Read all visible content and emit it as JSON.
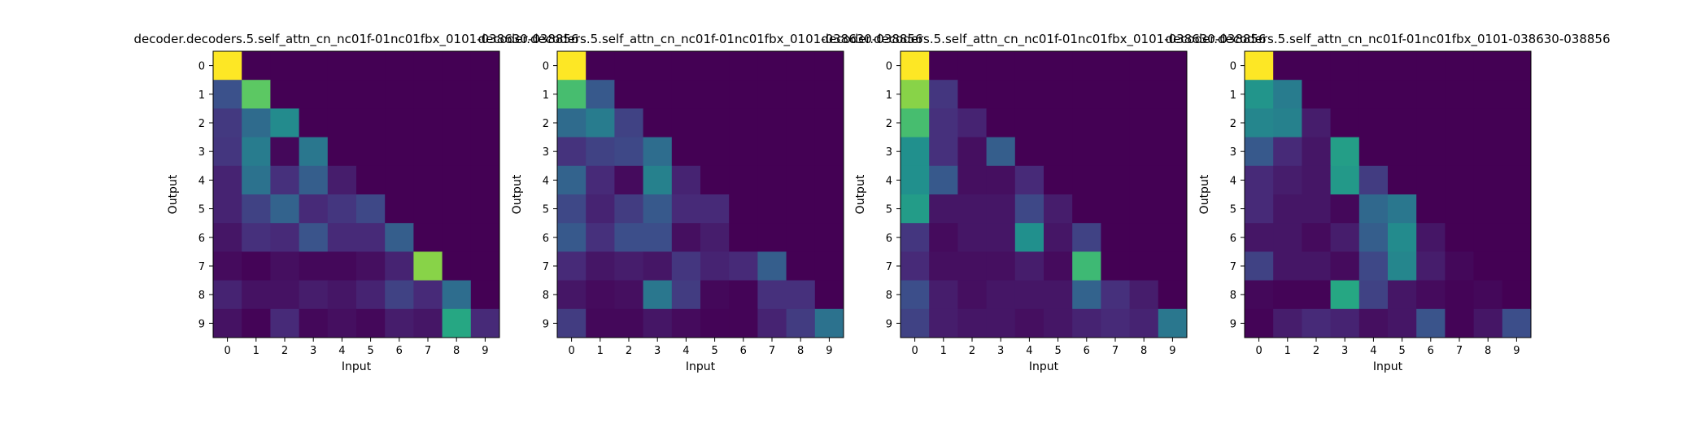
{
  "figure": {
    "xlabel": "Input",
    "ylabel": "Output",
    "x_ticks": [
      "0",
      "1",
      "2",
      "3",
      "4",
      "5",
      "6",
      "7",
      "8",
      "9"
    ],
    "y_ticks": [
      "0",
      "1",
      "2",
      "3",
      "4",
      "5",
      "6",
      "7",
      "8",
      "9"
    ],
    "colormap": "viridis"
  },
  "chart_data": [
    {
      "type": "heatmap",
      "title": "decoder.decoders.5.self_attn_cn_nc01f-01nc01fbx_0101-038630-038856",
      "xlabel": "Input",
      "ylabel": "Output",
      "x_categories": [
        "0",
        "1",
        "2",
        "3",
        "4",
        "5",
        "6",
        "7",
        "8",
        "9"
      ],
      "y_categories": [
        "0",
        "1",
        "2",
        "3",
        "4",
        "5",
        "6",
        "7",
        "8",
        "9"
      ],
      "values": [
        [
          1.0,
          0,
          0,
          0,
          0,
          0,
          0,
          0,
          0,
          0
        ],
        [
          0.25,
          0.75,
          0,
          0,
          0,
          0,
          0,
          0,
          0,
          0
        ],
        [
          0.17,
          0.35,
          0.48,
          0,
          0,
          0,
          0,
          0,
          0,
          0
        ],
        [
          0.16,
          0.42,
          0.02,
          0.4,
          0,
          0,
          0,
          0,
          0,
          0
        ],
        [
          0.1,
          0.38,
          0.14,
          0.3,
          0.08,
          0,
          0,
          0,
          0,
          0
        ],
        [
          0.1,
          0.2,
          0.32,
          0.12,
          0.16,
          0.22,
          0,
          0,
          0,
          0
        ],
        [
          0.06,
          0.14,
          0.12,
          0.26,
          0.12,
          0.12,
          0.3,
          0,
          0,
          0
        ],
        [
          0.03,
          0.01,
          0.04,
          0.02,
          0.02,
          0.04,
          0.1,
          0.82,
          0,
          0
        ],
        [
          0.1,
          0.05,
          0.05,
          0.08,
          0.06,
          0.1,
          0.2,
          0.12,
          0.36,
          0
        ],
        [
          0.05,
          0.01,
          0.12,
          0.02,
          0.04,
          0.02,
          0.08,
          0.06,
          0.6,
          0.12
        ]
      ]
    },
    {
      "type": "heatmap",
      "title": "decoder.decoders.5.self_attn_cn_nc01f-01nc01fbx_0101-038630-038856",
      "xlabel": "Input",
      "ylabel": "Output",
      "x_categories": [
        "0",
        "1",
        "2",
        "3",
        "4",
        "5",
        "6",
        "7",
        "8",
        "9"
      ],
      "y_categories": [
        "0",
        "1",
        "2",
        "3",
        "4",
        "5",
        "6",
        "7",
        "8",
        "9"
      ],
      "values": [
        [
          1.0,
          0,
          0,
          0,
          0,
          0,
          0,
          0,
          0,
          0
        ],
        [
          0.7,
          0.28,
          0,
          0,
          0,
          0,
          0,
          0,
          0,
          0
        ],
        [
          0.35,
          0.42,
          0.2,
          0,
          0,
          0,
          0,
          0,
          0,
          0
        ],
        [
          0.15,
          0.2,
          0.22,
          0.36,
          0,
          0,
          0,
          0,
          0,
          0
        ],
        [
          0.32,
          0.12,
          0.03,
          0.44,
          0.1,
          0,
          0,
          0,
          0,
          0
        ],
        [
          0.22,
          0.1,
          0.18,
          0.28,
          0.12,
          0.12,
          0,
          0,
          0,
          0
        ],
        [
          0.28,
          0.14,
          0.24,
          0.24,
          0.04,
          0.08,
          0,
          0,
          0,
          0
        ],
        [
          0.12,
          0.06,
          0.08,
          0.06,
          0.16,
          0.1,
          0.12,
          0.3,
          0,
          0
        ],
        [
          0.06,
          0.03,
          0.04,
          0.4,
          0.18,
          0.02,
          0.01,
          0.14,
          0.14,
          0
        ],
        [
          0.18,
          0.02,
          0.02,
          0.06,
          0.03,
          0.01,
          0.01,
          0.1,
          0.18,
          0.38
        ]
      ]
    },
    {
      "type": "heatmap",
      "title": "decoder.decoders.5.self_attn_cn_nc01f-01nc01fbx_0101-038630-038856",
      "xlabel": "Input",
      "ylabel": "Output",
      "x_categories": [
        "0",
        "1",
        "2",
        "3",
        "4",
        "5",
        "6",
        "7",
        "8",
        "9"
      ],
      "y_categories": [
        "0",
        "1",
        "2",
        "3",
        "4",
        "5",
        "6",
        "7",
        "8",
        "9"
      ],
      "values": [
        [
          1.0,
          0,
          0,
          0,
          0,
          0,
          0,
          0,
          0,
          0
        ],
        [
          0.82,
          0.16,
          0,
          0,
          0,
          0,
          0,
          0,
          0,
          0
        ],
        [
          0.7,
          0.14,
          0.1,
          0,
          0,
          0,
          0,
          0,
          0,
          0
        ],
        [
          0.5,
          0.14,
          0.04,
          0.3,
          0,
          0,
          0,
          0,
          0,
          0
        ],
        [
          0.5,
          0.28,
          0.04,
          0.04,
          0.12,
          0,
          0,
          0,
          0,
          0
        ],
        [
          0.55,
          0.06,
          0.06,
          0.06,
          0.22,
          0.08,
          0,
          0,
          0,
          0
        ],
        [
          0.16,
          0.03,
          0.06,
          0.06,
          0.5,
          0.06,
          0.2,
          0,
          0,
          0
        ],
        [
          0.12,
          0.04,
          0.04,
          0.04,
          0.08,
          0.03,
          0.68,
          0,
          0,
          0
        ],
        [
          0.24,
          0.08,
          0.04,
          0.06,
          0.06,
          0.06,
          0.32,
          0.14,
          0.08,
          0
        ],
        [
          0.2,
          0.08,
          0.06,
          0.06,
          0.04,
          0.06,
          0.1,
          0.12,
          0.1,
          0.4
        ]
      ]
    },
    {
      "type": "heatmap",
      "title": "decoder.decoders.5.self_attn_cn_nc01f-01nc01fbx_0101-038630-038856",
      "xlabel": "Input",
      "ylabel": "Output",
      "x_categories": [
        "0",
        "1",
        "2",
        "3",
        "4",
        "5",
        "6",
        "7",
        "8",
        "9"
      ],
      "y_categories": [
        "0",
        "1",
        "2",
        "3",
        "4",
        "5",
        "6",
        "7",
        "8",
        "9"
      ],
      "values": [
        [
          1.0,
          0,
          0,
          0,
          0,
          0,
          0,
          0,
          0,
          0
        ],
        [
          0.52,
          0.42,
          0,
          0,
          0,
          0,
          0,
          0,
          0,
          0
        ],
        [
          0.46,
          0.44,
          0.08,
          0,
          0,
          0,
          0,
          0,
          0,
          0
        ],
        [
          0.28,
          0.12,
          0.06,
          0.56,
          0,
          0,
          0,
          0,
          0,
          0
        ],
        [
          0.12,
          0.08,
          0.06,
          0.54,
          0.18,
          0,
          0,
          0,
          0,
          0
        ],
        [
          0.12,
          0.06,
          0.06,
          0.02,
          0.34,
          0.4,
          0,
          0,
          0,
          0
        ],
        [
          0.06,
          0.06,
          0.03,
          0.08,
          0.3,
          0.48,
          0.06,
          0,
          0,
          0
        ],
        [
          0.2,
          0.06,
          0.06,
          0.03,
          0.22,
          0.46,
          0.08,
          0.02,
          0,
          0
        ],
        [
          0.02,
          0.01,
          0.01,
          0.6,
          0.2,
          0.06,
          0.03,
          0.01,
          0.02,
          0
        ],
        [
          0.01,
          0.08,
          0.12,
          0.1,
          0.04,
          0.06,
          0.26,
          0.01,
          0.06,
          0.24
        ]
      ]
    }
  ]
}
